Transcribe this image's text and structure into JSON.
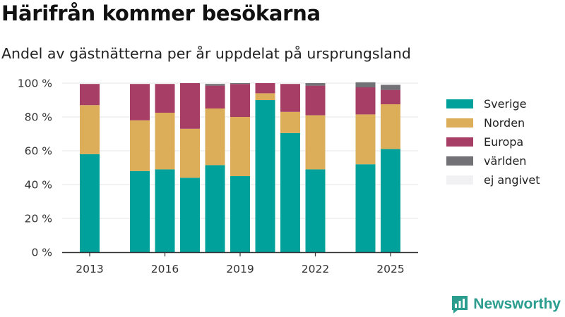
{
  "page": {
    "title": "Härifrån kommer besökarna",
    "subtitle": "Andel av gästnätterna per år uppdelat på ursprungsland",
    "brand": "Newsworthy"
  },
  "chart_data": {
    "type": "bar",
    "stacked": true,
    "title": "Härifrån kommer besökarna",
    "subtitle": "Andel av gästnätterna per år uppdelat på ursprungsland",
    "xlabel": "",
    "ylabel": "",
    "categories": [
      2013,
      2014,
      2015,
      2016,
      2017,
      2018,
      2019,
      2020,
      2021,
      2022,
      2023,
      2024,
      2025
    ],
    "x_tick_labels": [
      "2013",
      "2016",
      "2019",
      "2022",
      "2025"
    ],
    "x_tick_values": [
      2013,
      2016,
      2019,
      2022,
      2025
    ],
    "y_tick_labels": [
      "0 %",
      "20 %",
      "40 %",
      "60 %",
      "80 %",
      "100 %"
    ],
    "y_tick_values": [
      0,
      20,
      40,
      60,
      80,
      100
    ],
    "ylim": [
      0,
      100
    ],
    "grid": true,
    "legend_position": "right",
    "series": [
      {
        "name": "Sverige",
        "color": "#00a19a",
        "values": [
          58,
          null,
          48,
          49,
          44,
          51.5,
          45,
          90,
          70.5,
          49,
          null,
          52,
          61
        ]
      },
      {
        "name": "Norden",
        "color": "#dcae5a",
        "values": [
          29,
          null,
          30,
          33.5,
          29,
          33.5,
          35,
          4,
          12.5,
          32,
          null,
          29.5,
          26.5
        ]
      },
      {
        "name": "Europa",
        "color": "#a63e66",
        "values": [
          12.5,
          null,
          21.5,
          17,
          27,
          13.5,
          19.5,
          6,
          16.5,
          17.5,
          null,
          16,
          8.5
        ]
      },
      {
        "name": "världen",
        "color": "#717176",
        "values": [
          0,
          null,
          0,
          0,
          0,
          1,
          0.5,
          0,
          0,
          1.5,
          null,
          3,
          3
        ]
      },
      {
        "name": "ej angivet",
        "color": "#f1f1f3",
        "values": [
          0,
          null,
          0,
          0,
          0,
          0,
          0,
          0,
          0,
          0,
          null,
          0,
          0
        ]
      }
    ]
  }
}
